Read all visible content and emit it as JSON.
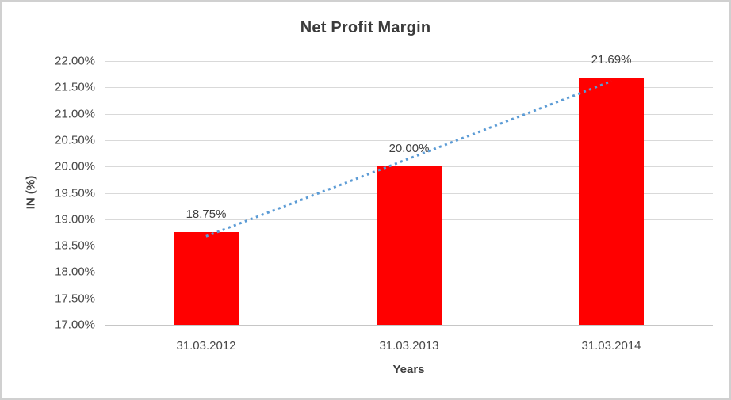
{
  "chart_data": {
    "type": "bar",
    "title": "Net Profit Margin",
    "xlabel": "Years",
    "ylabel": "IN (%)",
    "categories": [
      "31.03.2012",
      "31.03.2013",
      "31.03.2014"
    ],
    "values": [
      18.75,
      20.0,
      21.69
    ],
    "value_labels": [
      "18.75%",
      "20.00%",
      "21.69%"
    ],
    "ylim": [
      17.0,
      22.0
    ],
    "ytick_step": 0.5,
    "ytick_labels": [
      "17.00%",
      "17.50%",
      "18.00%",
      "18.50%",
      "19.00%",
      "19.50%",
      "20.00%",
      "20.50%",
      "21.00%",
      "21.50%",
      "22.00%"
    ],
    "grid": true,
    "legend": "none",
    "bar_color": "#ff0000",
    "gridline_color": "#d9d9d9",
    "text_color": "#474747",
    "trendline": {
      "type": "linear",
      "style": "dotted",
      "color": "#5b9bd5"
    }
  }
}
